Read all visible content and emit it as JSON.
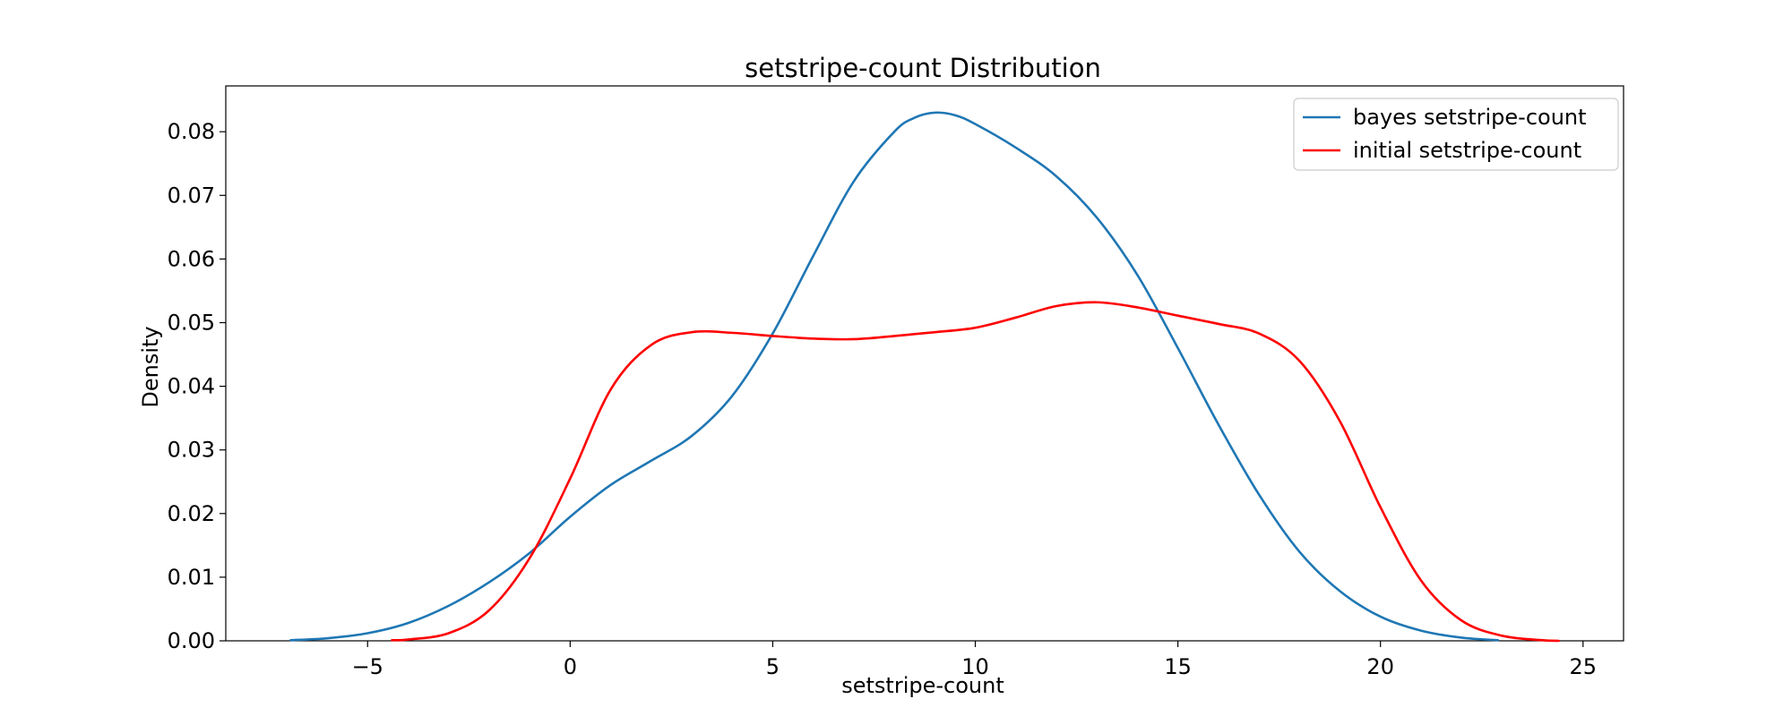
{
  "chart_data": {
    "type": "line",
    "title": "setstripe-count Distribution",
    "xlabel": "setstripe-count",
    "ylabel": "Density",
    "xlim": [
      -8.5,
      26.0
    ],
    "ylim": [
      0.0,
      0.0872
    ],
    "xticks": [
      -5,
      0,
      5,
      10,
      15,
      20,
      25
    ],
    "xtick_labels": [
      "−5",
      "0",
      "5",
      "10",
      "15",
      "20",
      "25"
    ],
    "yticks": [
      0.0,
      0.01,
      0.02,
      0.03,
      0.04,
      0.05,
      0.06,
      0.07,
      0.08
    ],
    "ytick_labels": [
      "0.00",
      "0.01",
      "0.02",
      "0.03",
      "0.04",
      "0.05",
      "0.06",
      "0.07",
      "0.08"
    ],
    "grid": false,
    "legend_position": "top-right",
    "series": [
      {
        "name": "bayes setstripe-count",
        "color": "#1f77b4",
        "points": [
          [
            -6.9,
            0.0001
          ],
          [
            -6.0,
            0.0004
          ],
          [
            -5.0,
            0.0012
          ],
          [
            -4.0,
            0.0028
          ],
          [
            -3.0,
            0.0055
          ],
          [
            -2.0,
            0.0092
          ],
          [
            -1.0,
            0.0138
          ],
          [
            0.0,
            0.0195
          ],
          [
            1.0,
            0.0245
          ],
          [
            2.0,
            0.0283
          ],
          [
            3.0,
            0.0322
          ],
          [
            4.0,
            0.0385
          ],
          [
            5.0,
            0.0483
          ],
          [
            6.0,
            0.0605
          ],
          [
            7.0,
            0.0722
          ],
          [
            8.0,
            0.08
          ],
          [
            8.5,
            0.0822
          ],
          [
            9.0,
            0.083
          ],
          [
            9.5,
            0.0826
          ],
          [
            10.0,
            0.0812
          ],
          [
            11.0,
            0.0775
          ],
          [
            12.0,
            0.073
          ],
          [
            13.0,
            0.0665
          ],
          [
            14.0,
            0.0575
          ],
          [
            15.0,
            0.046
          ],
          [
            16.0,
            0.034
          ],
          [
            17.0,
            0.023
          ],
          [
            18.0,
            0.014
          ],
          [
            19.0,
            0.0078
          ],
          [
            20.0,
            0.0038
          ],
          [
            21.0,
            0.0016
          ],
          [
            22.0,
            0.0005
          ],
          [
            22.9,
            0.0001
          ]
        ]
      },
      {
        "name": "initial setstripe-count",
        "color": "#ff0000",
        "points": [
          [
            -4.4,
            0.0001
          ],
          [
            -4.0,
            0.0002
          ],
          [
            -3.0,
            0.0012
          ],
          [
            -2.0,
            0.0048
          ],
          [
            -1.0,
            0.013
          ],
          [
            0.0,
            0.0255
          ],
          [
            1.0,
            0.0395
          ],
          [
            2.0,
            0.0465
          ],
          [
            3.0,
            0.0485
          ],
          [
            4.0,
            0.0484
          ],
          [
            5.0,
            0.0479
          ],
          [
            6.0,
            0.0475
          ],
          [
            7.0,
            0.0474
          ],
          [
            8.0,
            0.0479
          ],
          [
            9.0,
            0.0485
          ],
          [
            10.0,
            0.0492
          ],
          [
            11.0,
            0.0508
          ],
          [
            12.0,
            0.0526
          ],
          [
            13.0,
            0.0532
          ],
          [
            14.0,
            0.0524
          ],
          [
            15.0,
            0.0511
          ],
          [
            16.0,
            0.0498
          ],
          [
            17.0,
            0.0483
          ],
          [
            18.0,
            0.044
          ],
          [
            19.0,
            0.0345
          ],
          [
            20.0,
            0.021
          ],
          [
            21.0,
            0.0095
          ],
          [
            22.0,
            0.0032
          ],
          [
            23.0,
            0.0008
          ],
          [
            24.0,
            0.0001
          ],
          [
            24.4,
            0.0
          ]
        ]
      }
    ]
  }
}
